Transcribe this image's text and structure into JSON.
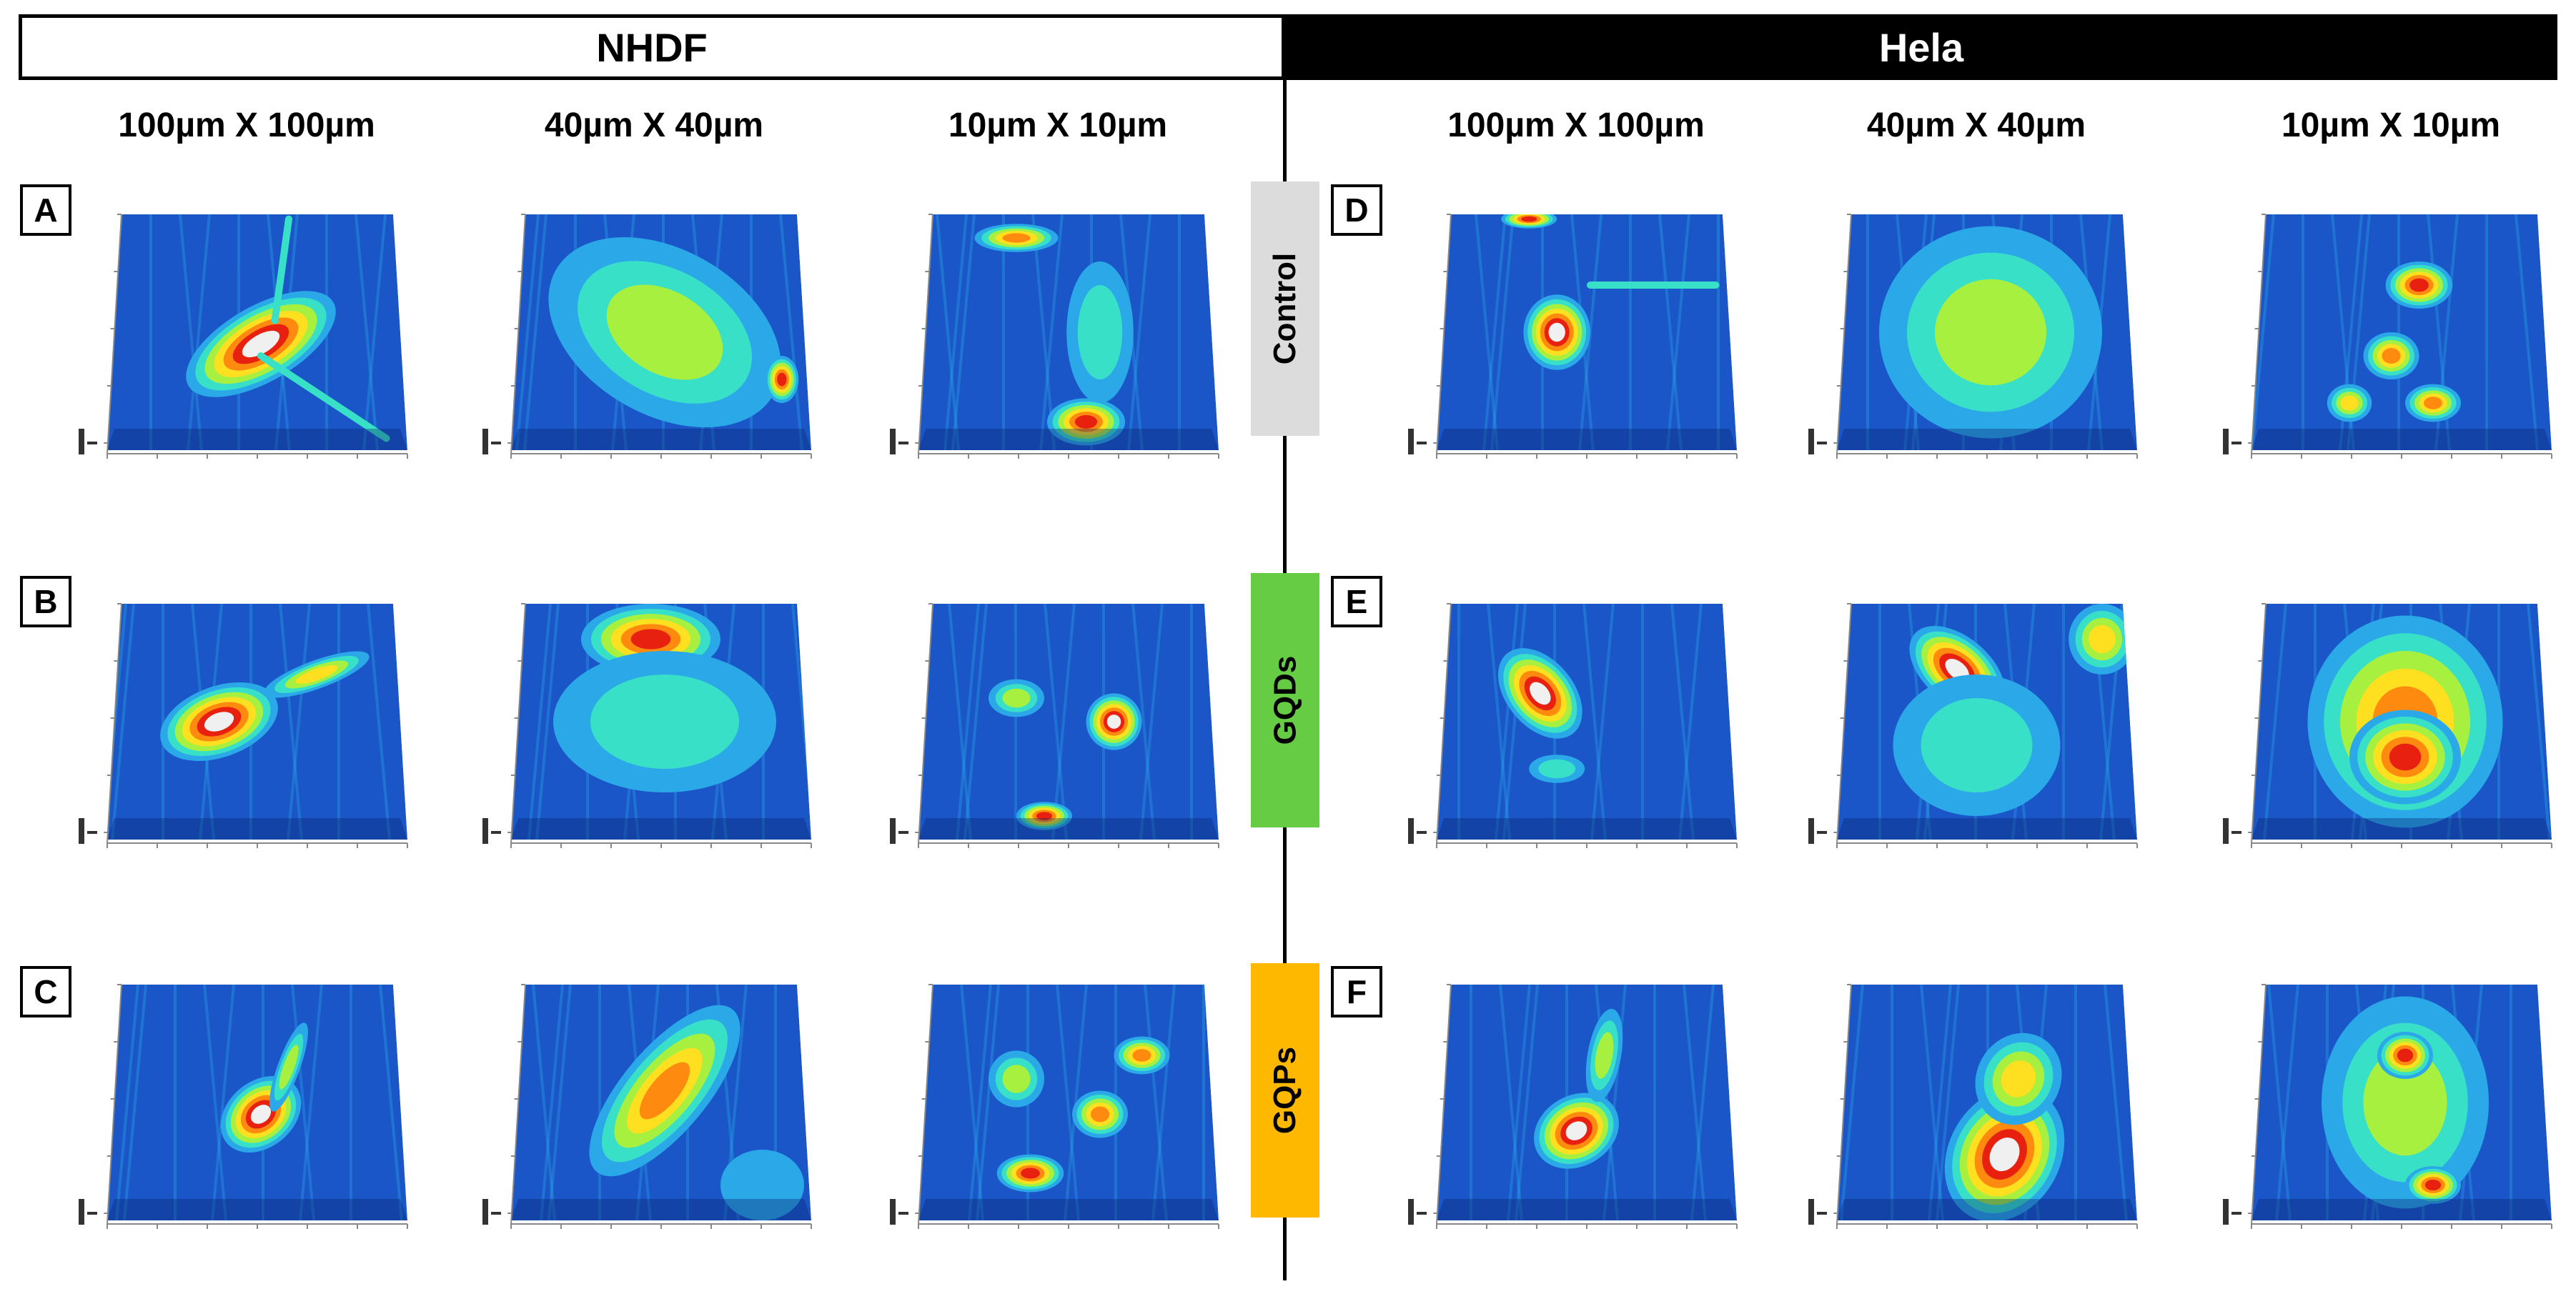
{
  "headers": {
    "left": "NHDF",
    "right": "Hela"
  },
  "scales": {
    "left": [
      "100µm X 100µm",
      "40µm X 40µm",
      "10µm X 10µm"
    ],
    "right": [
      "100µm X 100µm",
      "40µm X 40µm",
      "10µm X 10µm"
    ]
  },
  "conditions": [
    {
      "label": "Control",
      "color": "#dcdcdc"
    },
    {
      "label": "GQDs",
      "color": "#66cc44"
    },
    {
      "label": "GQPs",
      "color": "#ffb800"
    }
  ],
  "panel_letters": [
    "A",
    "B",
    "C",
    "D",
    "E",
    "F"
  ],
  "colormap": [
    "#0a1f66",
    "#1a56c8",
    "#2aa8e8",
    "#38e0c8",
    "#a8f040",
    "#ffe020",
    "#ff8a10",
    "#e82010",
    "#f0f0f0"
  ]
}
